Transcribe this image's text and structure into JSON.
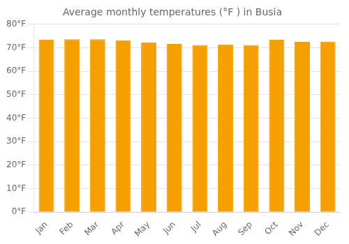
{
  "chart_data": {
    "type": "bar",
    "title": "Average monthly temperatures (°F ) in Busia",
    "categories": [
      "Jan",
      "Feb",
      "Mar",
      "Apr",
      "May",
      "Jun",
      "Jul",
      "Aug",
      "Sep",
      "Oct",
      "Nov",
      "Dec"
    ],
    "values": [
      73.4,
      73.6,
      73.6,
      73.2,
      72.3,
      71.6,
      71.2,
      71.4,
      71.2,
      73.4,
      72.5,
      72.7
    ],
    "color": "#F5A000",
    "ylim": [
      0,
      80
    ],
    "yticks": [
      {
        "value": 0,
        "label": "0°F"
      },
      {
        "value": 10,
        "label": "10°F"
      },
      {
        "value": 20,
        "label": "20°F"
      },
      {
        "value": 30,
        "label": "30°F"
      },
      {
        "value": 40,
        "label": "40°F"
      },
      {
        "value": 50,
        "label": "50°F"
      },
      {
        "value": 60,
        "label": "60°F"
      },
      {
        "value": 70,
        "label": "70°F"
      },
      {
        "value": 80,
        "label": "80°F"
      }
    ],
    "grid": true
  }
}
